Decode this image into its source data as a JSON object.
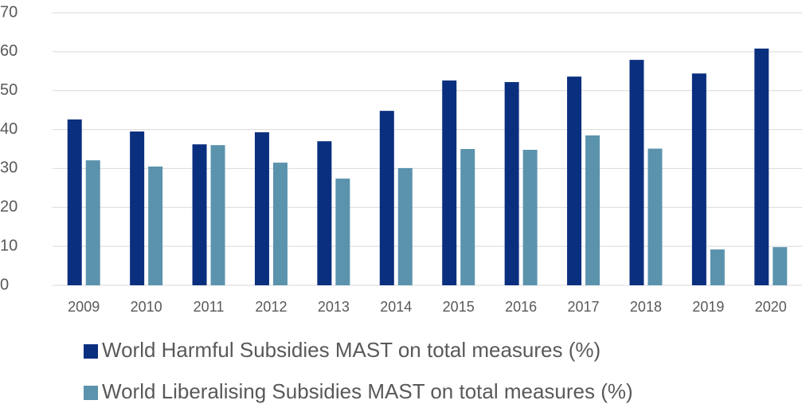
{
  "chart_data": {
    "type": "bar",
    "categories": [
      "2009",
      "2010",
      "2011",
      "2012",
      "2013",
      "2014",
      "2015",
      "2016",
      "2017",
      "2018",
      "2019",
      "2020"
    ],
    "series": [
      {
        "name": "World Harmful Subsidies MAST on total measures (%)",
        "color": "#0b2f7f",
        "values": [
          42.6,
          39.5,
          36.2,
          39.3,
          37.0,
          44.8,
          52.6,
          52.2,
          53.6,
          57.9,
          54.4,
          60.8
        ]
      },
      {
        "name": "World Liberalising Subsidies MAST on total measures (%)",
        "color": "#5b93ad",
        "values": [
          32.1,
          30.5,
          36.0,
          31.5,
          27.4,
          30.1,
          35.0,
          34.8,
          38.5,
          35.1,
          9.2,
          9.8
        ]
      }
    ],
    "ylim": [
      0,
      70
    ],
    "yticks": [
      0,
      10,
      20,
      30,
      40,
      50,
      60,
      70
    ],
    "grid": true,
    "legend": "bottom"
  }
}
